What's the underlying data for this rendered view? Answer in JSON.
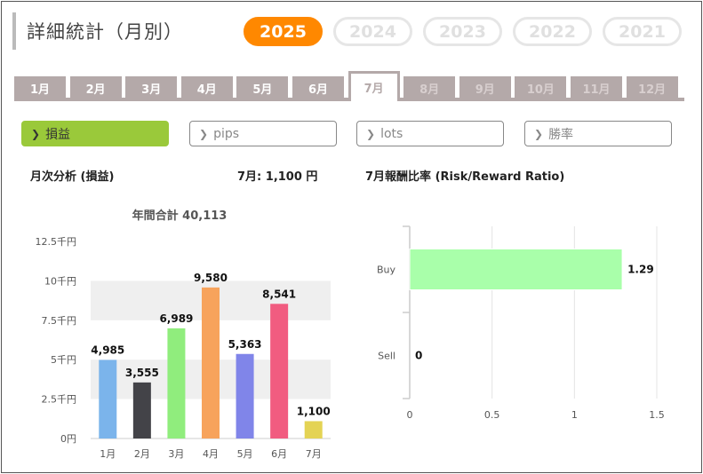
{
  "header": {
    "title": "詳細統計（月別）"
  },
  "years": [
    {
      "label": "2025",
      "active": true
    },
    {
      "label": "2024",
      "active": false
    },
    {
      "label": "2023",
      "active": false
    },
    {
      "label": "2022",
      "active": false
    },
    {
      "label": "2021",
      "active": false
    }
  ],
  "months": [
    "1月",
    "2月",
    "3月",
    "4月",
    "5月",
    "6月",
    "7月",
    "8月",
    "9月",
    "10月",
    "11月",
    "12月"
  ],
  "active_month_index": 6,
  "metrics": [
    {
      "label": "損益",
      "active": true
    },
    {
      "label": "pips",
      "active": false
    },
    {
      "label": "lots",
      "active": false
    },
    {
      "label": "勝率",
      "active": false
    }
  ],
  "left_panel": {
    "title": "月次分析 (損益)",
    "summary": "7月:  1,100 円"
  },
  "right_panel": {
    "title": "7月報酬比率 (Risk/Reward Ratio)"
  },
  "colors": {
    "accent": "#ff8800",
    "tab": "#b4a9a9",
    "metric_active": "#9ac93a",
    "bars": [
      "#7bb4eb",
      "#434348",
      "#90ed7d",
      "#f7a35c",
      "#8085e9",
      "#f15c80",
      "#e4d354"
    ],
    "ratio_bar": "#a9ffaa"
  },
  "chart_data": [
    {
      "type": "bar",
      "title": "年間合計 40,113",
      "categories": [
        "1月",
        "2月",
        "3月",
        "4月",
        "5月",
        "6月",
        "7月"
      ],
      "values": [
        4985,
        3555,
        6989,
        9580,
        5363,
        8541,
        1100
      ],
      "data_labels": [
        "4,985",
        "3,555",
        "6,989",
        "9,580",
        "5,363",
        "8,541",
        "1,100"
      ],
      "ylim": [
        0,
        12500
      ],
      "yticks": [
        0,
        2500,
        5000,
        7500,
        10000,
        12500
      ],
      "ytick_labels": [
        "0円",
        "2.5千円",
        "5千円",
        "7.5千円",
        "10千円",
        "12.5千円"
      ],
      "grid": "alternating bands",
      "legend": "none"
    },
    {
      "type": "bar",
      "orientation": "horizontal",
      "categories": [
        "Buy",
        "Sell"
      ],
      "values": [
        1.29,
        0
      ],
      "data_labels": [
        "1.29",
        "0"
      ],
      "xlim": [
        0,
        1.5
      ],
      "xticks": [
        0,
        0.5,
        1,
        1.5
      ],
      "xtick_labels": [
        "0",
        "0.5",
        "1",
        "1.5"
      ],
      "grid": "vertical lines",
      "legend": "none"
    }
  ]
}
